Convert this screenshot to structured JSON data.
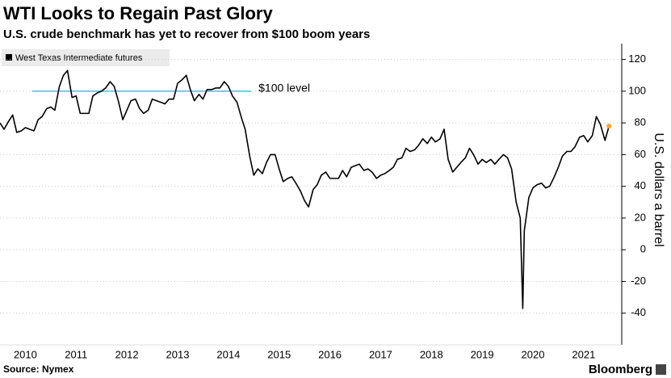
{
  "chart_data": {
    "type": "line",
    "title": "WTI Looks to Regain Past Glory",
    "subtitle": "U.S. crude benchmark has yet to recover from $100 boom years",
    "y_label": "U.S. dollars a barrel",
    "source": "Source: Nymex",
    "brand": "Bloomberg",
    "x": [
      2010.0,
      2010.08,
      2010.17,
      2010.25,
      2010.33,
      2010.42,
      2010.5,
      2010.58,
      2010.67,
      2010.75,
      2010.83,
      2010.92,
      2011.0,
      2011.08,
      2011.17,
      2011.25,
      2011.33,
      2011.42,
      2011.5,
      2011.58,
      2011.67,
      2011.75,
      2011.83,
      2011.92,
      2012.0,
      2012.08,
      2012.17,
      2012.25,
      2012.33,
      2012.42,
      2012.5,
      2012.58,
      2012.67,
      2012.75,
      2012.83,
      2012.92,
      2013.0,
      2013.08,
      2013.17,
      2013.25,
      2013.33,
      2013.42,
      2013.5,
      2013.58,
      2013.67,
      2013.75,
      2013.83,
      2013.92,
      2014.0,
      2014.08,
      2014.17,
      2014.25,
      2014.33,
      2014.42,
      2014.5,
      2014.58,
      2014.67,
      2014.75,
      2014.83,
      2014.92,
      2015.0,
      2015.08,
      2015.17,
      2015.25,
      2015.33,
      2015.42,
      2015.5,
      2015.58,
      2015.67,
      2015.75,
      2015.83,
      2015.92,
      2016.0,
      2016.08,
      2016.17,
      2016.25,
      2016.33,
      2016.42,
      2016.5,
      2016.58,
      2016.67,
      2016.75,
      2016.83,
      2016.92,
      2017.0,
      2017.08,
      2017.17,
      2017.25,
      2017.33,
      2017.42,
      2017.5,
      2017.58,
      2017.67,
      2017.75,
      2017.83,
      2017.92,
      2018.0,
      2018.08,
      2018.17,
      2018.25,
      2018.33,
      2018.42,
      2018.5,
      2018.58,
      2018.67,
      2018.75,
      2018.83,
      2018.92,
      2019.0,
      2019.08,
      2019.17,
      2019.25,
      2019.33,
      2019.42,
      2019.5,
      2019.58,
      2019.67,
      2019.75,
      2019.83,
      2019.92,
      2020.0,
      2020.08,
      2020.17,
      2020.25,
      2020.3,
      2020.33,
      2020.42,
      2020.5,
      2020.58,
      2020.67,
      2020.75,
      2020.83,
      2020.92,
      2021.0,
      2021.08,
      2021.17,
      2021.25,
      2021.33,
      2021.42,
      2021.5,
      2021.58,
      2021.67,
      2021.75,
      2021.83,
      2021.92,
      2022.0
    ],
    "series": [
      {
        "name": "West Texas Intermediate futures",
        "color": "#000000",
        "values": [
          80,
          76,
          81,
          85,
          74,
          75,
          77,
          76,
          75,
          82,
          84,
          89,
          90,
          88,
          103,
          110,
          113,
          96,
          97,
          86,
          86,
          86,
          97,
          99,
          100,
          102,
          106,
          103,
          94,
          82,
          88,
          94,
          95,
          89,
          86,
          88,
          95,
          94,
          93,
          92,
          95,
          95,
          105,
          107,
          110,
          101,
          94,
          98,
          95,
          101,
          101,
          102,
          102,
          106,
          103,
          97,
          93,
          84,
          76,
          59,
          47,
          51,
          48,
          55,
          60,
          60,
          51,
          43,
          45,
          46,
          42,
          37,
          31,
          27,
          38,
          41,
          47,
          49,
          45,
          45,
          45,
          50,
          46,
          52,
          53,
          54,
          50,
          51,
          49,
          45,
          47,
          48,
          50,
          52,
          57,
          58,
          64,
          62,
          63,
          66,
          70,
          67,
          71,
          68,
          70,
          76,
          57,
          49,
          52,
          55,
          58,
          64,
          60,
          54,
          57,
          55,
          57,
          54,
          57,
          60,
          58,
          51,
          30,
          20,
          -37,
          12,
          33,
          39,
          41,
          42,
          39,
          40,
          46,
          52,
          59,
          62,
          62,
          65,
          71,
          72,
          68,
          72,
          84,
          79,
          69,
          78
        ]
      }
    ],
    "last_point_color": "#f5a623",
    "annotation": {
      "text": "$100 level",
      "value": 100,
      "x": [
        2010.63,
        2014.95
      ],
      "color": "#5fd6e2"
    },
    "xlim": [
      2010.0,
      2022.25
    ],
    "xticks": [
      {
        "value": 2010.5,
        "label": "2010"
      },
      {
        "value": 2011.5,
        "label": "2011"
      },
      {
        "value": 2012.5,
        "label": "2012"
      },
      {
        "value": 2013.5,
        "label": "2013"
      },
      {
        "value": 2014.5,
        "label": "2014"
      },
      {
        "value": 2015.5,
        "label": "2015"
      },
      {
        "value": 2016.5,
        "label": "2016"
      },
      {
        "value": 2017.5,
        "label": "2017"
      },
      {
        "value": 2018.5,
        "label": "2018"
      },
      {
        "value": 2019.5,
        "label": "2019"
      },
      {
        "value": 2020.5,
        "label": "2020"
      },
      {
        "value": 2021.5,
        "label": "2021"
      }
    ],
    "ylim": [
      -60,
      130
    ],
    "yticks": [
      -40,
      -20,
      0,
      20,
      40,
      60,
      80,
      100,
      120
    ],
    "grid": true
  }
}
